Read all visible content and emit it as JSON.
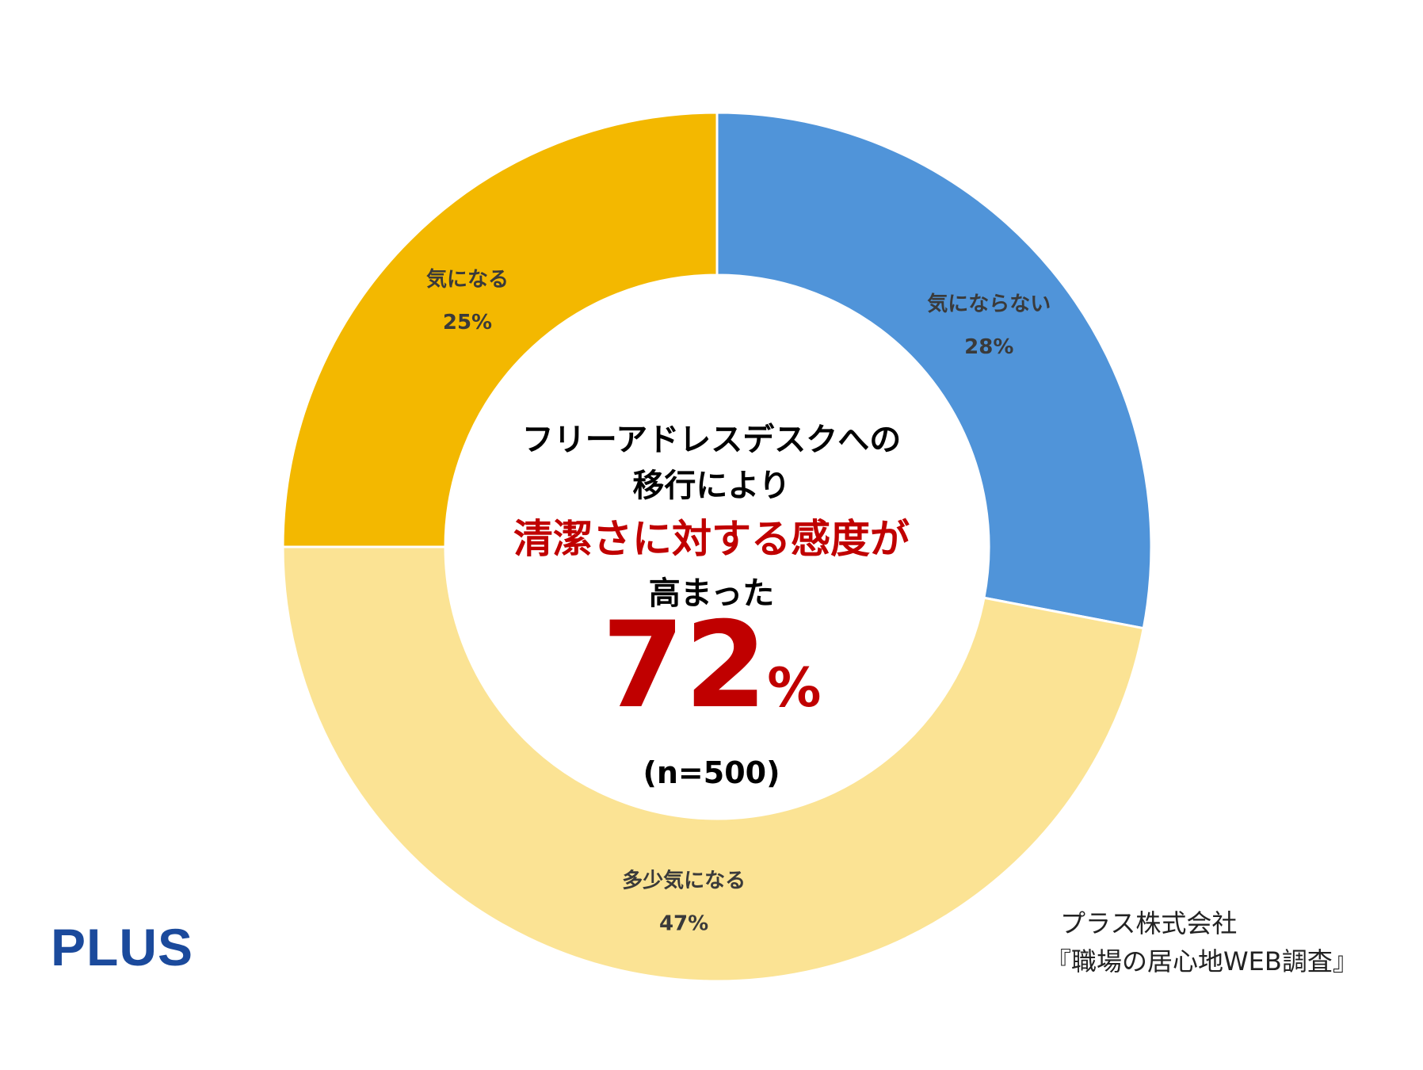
{
  "chart_data": {
    "type": "pie",
    "donut": true,
    "slices": [
      {
        "label": "気にならない",
        "value": 28,
        "value_label": "28%",
        "color": "#5094d9"
      },
      {
        "label": "多少気になる",
        "value": 47,
        "value_label": "47%",
        "color": "#fbe394"
      },
      {
        "label": "気になる",
        "value": 25,
        "value_label": "25%",
        "color": "#f3b800"
      }
    ],
    "start": "12 o'clock",
    "direction": "clockwise",
    "legend": "none",
    "data_labels": "on segments"
  },
  "center": {
    "line1": "フリーアドレスデスクへの",
    "line2": "移行により",
    "line3": "清潔さに対する感度が",
    "line4": "高まった",
    "big_number": "72",
    "big_unit": "%",
    "sample": "(n=500)",
    "highlight_color": "#c00000"
  },
  "brand": {
    "logo_text": "PLUS",
    "logo_color": "#1b4a9c"
  },
  "source": {
    "line1": "プラス株式会社",
    "line2": "『職場の居心地WEB調査』"
  }
}
